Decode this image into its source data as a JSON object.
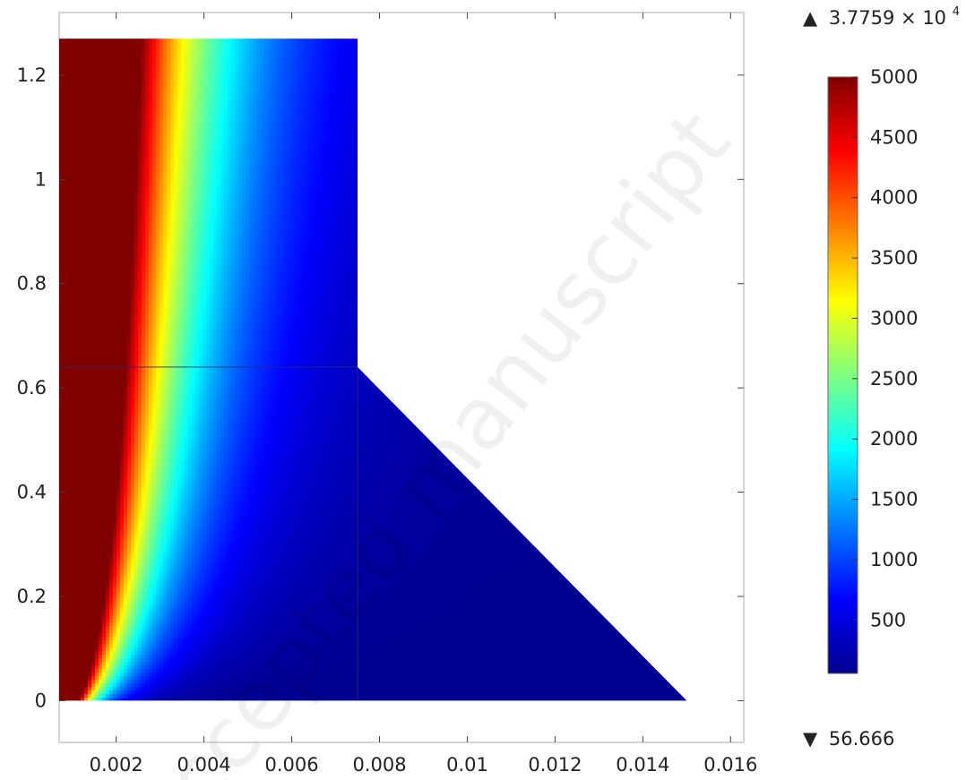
{
  "chart_data": {
    "type": "heatmap",
    "title": "",
    "xlabel": "",
    "ylabel": "",
    "xlim": [
      0.0007,
      0.0163
    ],
    "ylim": [
      -0.08,
      1.32
    ],
    "x_ticks": [
      0.002,
      0.004,
      0.006,
      0.008,
      0.01,
      0.012,
      0.014,
      0.016
    ],
    "x_tick_labels": [
      "0.002",
      "0.004",
      "0.006",
      "0.008",
      "0.01",
      "0.012",
      "0.014",
      "0.016"
    ],
    "y_ticks": [
      0,
      0.2,
      0.4,
      0.6,
      0.8,
      1,
      1.2
    ],
    "y_tick_labels": [
      "0",
      "0.2",
      "0.4",
      "0.6",
      "0.8",
      "1",
      "1.2"
    ],
    "domain_polygon": [
      [
        0.0007,
        0
      ],
      [
        0.015,
        0
      ],
      [
        0.0075,
        0.64
      ],
      [
        0.0075,
        1.27
      ],
      [
        0.0007,
        1.27
      ]
    ],
    "internal_boundaries": [
      {
        "x": [
          0.0007,
          0.0075
        ],
        "y": [
          0.64,
          0.64
        ]
      },
      {
        "x": [
          0.0075,
          0.0075
        ],
        "y": [
          0,
          0.64
        ]
      }
    ],
    "colorbar": {
      "colormap": "jet",
      "min": 56.666,
      "max": 5000,
      "ticks": [
        500,
        1000,
        1500,
        2000,
        2500,
        3000,
        3500,
        4000,
        4500,
        5000
      ],
      "tick_labels": [
        "500",
        "1000",
        "1500",
        "2000",
        "2500",
        "3000",
        "3500",
        "4000",
        "4500",
        "5000"
      ],
      "max_marker": {
        "symbol": "▲",
        "mantissa": "3.7759",
        "times": "×",
        "base": "10",
        "exponent": "4"
      },
      "min_marker": {
        "symbol": "▼",
        "value": "56.666"
      }
    },
    "watermark": "Accepted manuscript",
    "grid": false,
    "legend": "colorbar-right"
  }
}
